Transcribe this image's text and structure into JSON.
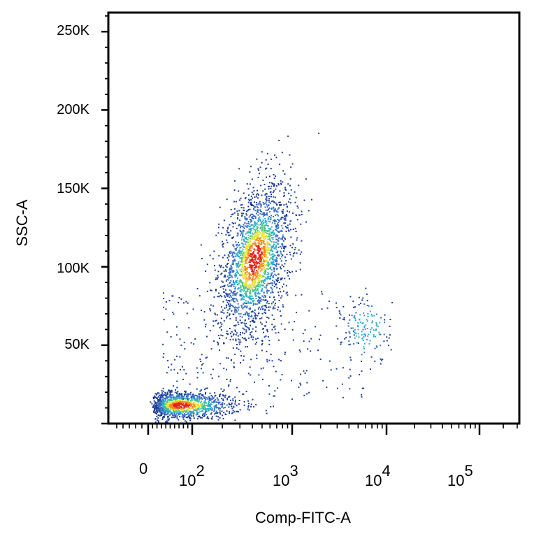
{
  "chart_data": {
    "type": "scatter",
    "title": "",
    "xlabel": "Comp-FITC-A",
    "ylabel": "SSC-A",
    "x_scale": "biexponential",
    "xlim": [
      -60,
      300000
    ],
    "ylim": [
      0,
      262144
    ],
    "y_ticks": [
      {
        "value": 50000,
        "label": "50K"
      },
      {
        "value": 100000,
        "label": "100K"
      },
      {
        "value": 150000,
        "label": "150K"
      },
      {
        "value": 200000,
        "label": "200K"
      },
      {
        "value": 250000,
        "label": "250K"
      }
    ],
    "x_ticks": [
      {
        "value": 0,
        "label": "0",
        "base": "",
        "exp": ""
      },
      {
        "value": 100,
        "label": "10^2",
        "base": "10",
        "exp": "2"
      },
      {
        "value": 1000,
        "label": "10^3",
        "base": "10",
        "exp": "3"
      },
      {
        "value": 10000,
        "label": "10^4",
        "base": "10",
        "exp": "4"
      },
      {
        "value": 100000,
        "label": "10^5",
        "base": "10",
        "exp": "5"
      }
    ],
    "density_colormap": [
      "#1f3f9a",
      "#3b6fc1",
      "#2eaad0",
      "#4cc38a",
      "#e6e433",
      "#f58a1f",
      "#e02418"
    ],
    "populations": [
      {
        "name": "",
        "x_center": 70,
        "y_center": 12000,
        "x_spread_decades": 0.32,
        "y_spread": 4500,
        "count": 1200,
        "density_color": "#e02418"
      },
      {
        "name": "",
        "x_center": 420,
        "y_center": 105000,
        "x_spread_decades": 0.18,
        "y_spread": 22000,
        "count": 2300,
        "density_color": "#e02418"
      },
      {
        "name": "",
        "x_center": 6000,
        "y_center": 60000,
        "x_spread_decades": 0.13,
        "y_spread": 11000,
        "count": 150,
        "density_color": "#2eaad0"
      }
    ],
    "grid": false,
    "legend": "none"
  }
}
